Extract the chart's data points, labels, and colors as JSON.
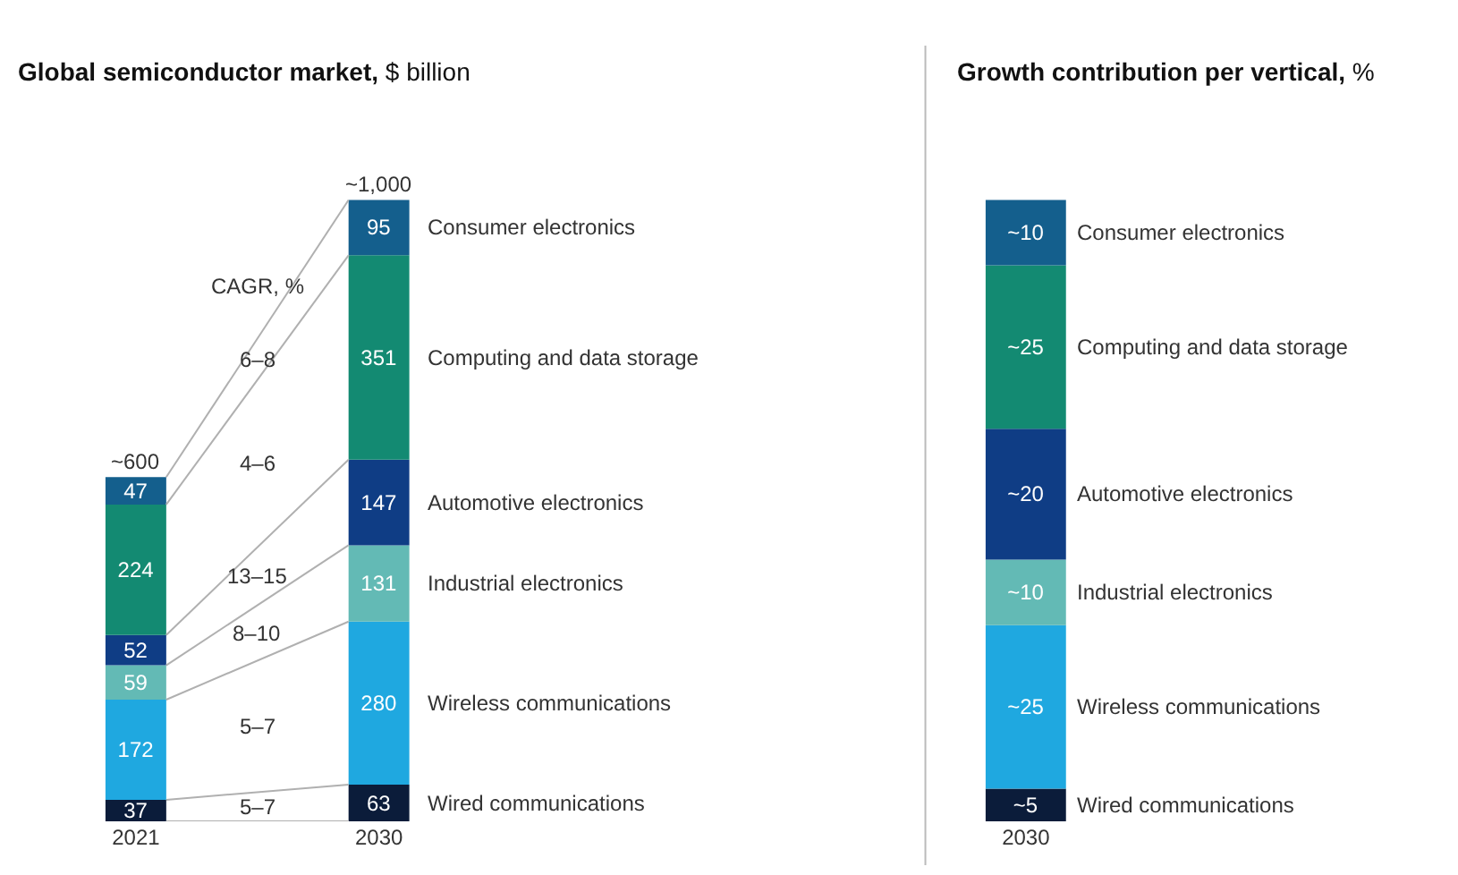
{
  "chart_data": [
    {
      "type": "bar",
      "stacked": true,
      "title": "Global semiconductor market, $ billion",
      "categories": [
        "2021",
        "2030"
      ],
      "data_labels": true,
      "annotations": [
        "CAGR, %",
        "5–7",
        "5–7",
        "8–10",
        "13–15",
        "4–6",
        "6–8",
        {
          "text": "~600",
          "x": "2021",
          "y": 591
        },
        {
          "text": "~1,000",
          "x": "2030",
          "y": 1067
        }
      ],
      "series": [
        {
          "name": "Wired communications",
          "color": "#0b1c3a",
          "values": [
            37,
            63
          ]
        },
        {
          "name": "Wireless communications",
          "color": "#1fa8e0",
          "values": [
            172,
            280
          ]
        },
        {
          "name": "Industrial electronics",
          "color": "#63bab5",
          "values": [
            59,
            131
          ]
        },
        {
          "name": "Automotive electronics",
          "color": "#0f3d85",
          "values": [
            52,
            147
          ]
        },
        {
          "name": "Computing and data storage",
          "color": "#138a72",
          "values": [
            224,
            351
          ]
        },
        {
          "name": "Consumer electronics",
          "color": "#145f8d",
          "values": [
            47,
            95
          ]
        }
      ]
    },
    {
      "type": "bar",
      "stacked": true,
      "title": "Growth contribution per vertical, %",
      "categories": [
        "2030"
      ],
      "series": [
        {
          "name": "Wired communications",
          "color": "#0b1c3a",
          "values": [
            5
          ],
          "value_labels": [
            "~5"
          ]
        },
        {
          "name": "Wireless communications",
          "color": "#1fa8e0",
          "values": [
            25
          ],
          "value_labels": [
            "~25"
          ]
        },
        {
          "name": "Industrial electronics",
          "color": "#63bab5",
          "values": [
            10
          ],
          "value_labels": [
            "~10"
          ]
        },
        {
          "name": "Automotive electronics",
          "color": "#0f3d85",
          "values": [
            20
          ],
          "value_labels": [
            "~20"
          ]
        },
        {
          "name": "Computing and data storage",
          "color": "#138a72",
          "values": [
            25
          ],
          "value_labels": [
            "~25"
          ]
        },
        {
          "name": "Consumer electronics",
          "color": "#145f8d",
          "values": [
            10
          ],
          "value_labels": [
            "~10"
          ]
        }
      ]
    }
  ]
}
